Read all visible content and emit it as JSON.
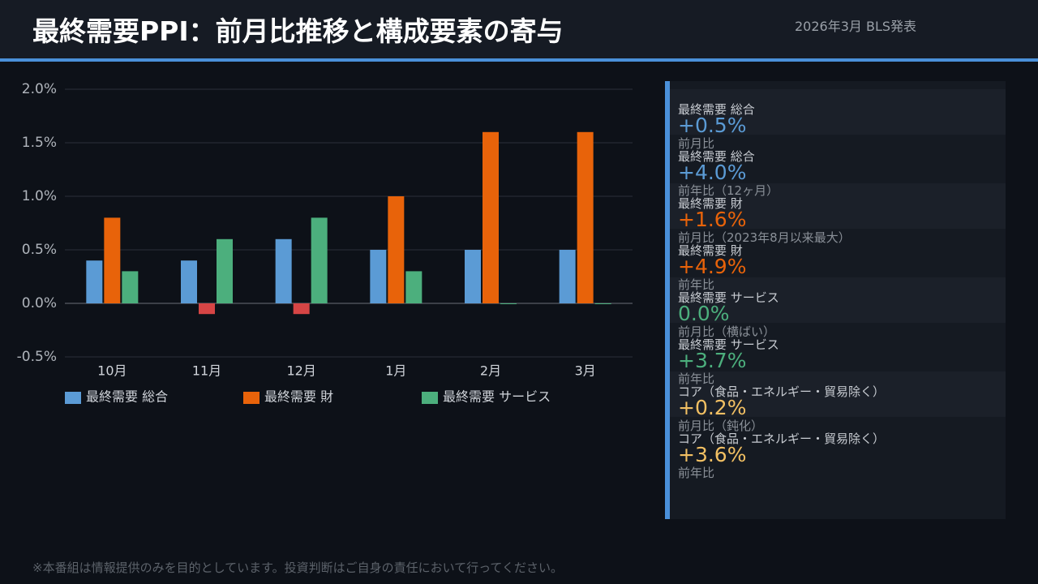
{
  "header": {
    "title": "最終需要PPI：前月比推移と構成要素の寄与",
    "date": "2026年3月 BLS発表"
  },
  "chart_data": {
    "type": "bar",
    "categories": [
      "10月",
      "11月",
      "12月",
      "1月",
      "2月",
      "3月"
    ],
    "series": [
      {
        "name": "最終需要 総合",
        "color": "#5b9bd5",
        "values": [
          0.4,
          0.4,
          0.6,
          0.5,
          0.5,
          0.5
        ]
      },
      {
        "name": "最終需要 財",
        "color": "#e8630a",
        "values": [
          0.8,
          -0.1,
          -0.1,
          1.0,
          1.6,
          1.6
        ]
      },
      {
        "name": "最終需要 サービス",
        "color": "#4caf7d",
        "values": [
          0.3,
          0.6,
          0.8,
          0.3,
          0.0,
          0.0
        ]
      }
    ],
    "negative_color": "#d64545",
    "ylim": [
      -0.5,
      2.0
    ],
    "yticks": [
      {
        "value": -0.5,
        "label": "-0.5%"
      },
      {
        "value": 0.0,
        "label": "0.0%"
      },
      {
        "value": 0.5,
        "label": "0.5%"
      },
      {
        "value": 1.0,
        "label": "1.0%"
      },
      {
        "value": 1.5,
        "label": "1.5%"
      },
      {
        "value": 2.0,
        "label": "2.0%"
      }
    ],
    "grid": true
  },
  "panel": {
    "items": [
      {
        "label": "最終需要 総合",
        "value": "+0.5%",
        "note": "前月比",
        "color": "#5b9bd5"
      },
      {
        "label": "最終需要 総合",
        "value": "+4.0%",
        "note": "前年比（12ヶ月）",
        "color": "#5b9bd5"
      },
      {
        "label": "最終需要 財",
        "value": "+1.6%",
        "note": "前月比（2023年8月以来最大）",
        "color": "#e8630a"
      },
      {
        "label": "最終需要 財",
        "value": "+4.9%",
        "note": "前年比",
        "color": "#e8630a"
      },
      {
        "label": "最終需要 サービス",
        "value": "0.0%",
        "note": "前月比（横ばい）",
        "color": "#4caf7d"
      },
      {
        "label": "最終需要 サービス",
        "value": "+3.7%",
        "note": "前年比",
        "color": "#4caf7d"
      },
      {
        "label": "コア（食品・エネルギー・貿易除く）",
        "value": "+0.2%",
        "note": "前月比（鈍化）",
        "color": "#f2c063"
      },
      {
        "label": "コア（食品・エネルギー・貿易除く）",
        "value": "+3.6%",
        "note": "前年比",
        "color": "#f2c063"
      }
    ]
  },
  "footer": {
    "disclaimer": "※本番組は情報提供のみを目的としています。投資判断はご自身の責任において行ってください。"
  }
}
